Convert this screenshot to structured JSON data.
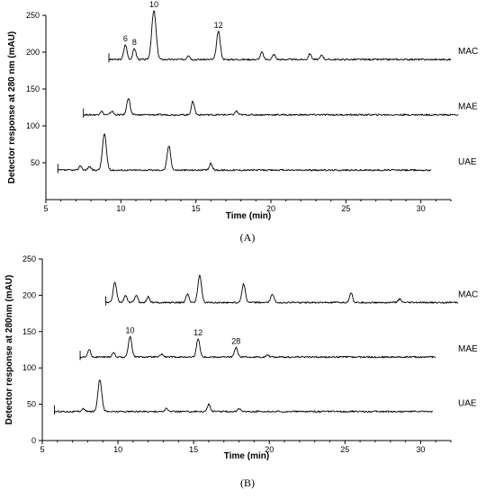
{
  "panels": [
    {
      "label": "(A)",
      "label_letter": "A"
    },
    {
      "label": "(B)",
      "label_letter": "B"
    }
  ],
  "chart_data": [
    {
      "type": "line",
      "panel": "A",
      "xlabel": "Time (min)",
      "ylabel": "Detector response at 280 nm (mAU)",
      "xlim": [
        5,
        32
      ],
      "ylim": [
        0,
        250
      ],
      "xticks": [
        5,
        10,
        15,
        20,
        25,
        30
      ],
      "yticks": [
        50,
        100,
        150,
        200,
        250
      ],
      "series": [
        {
          "name": "MAC",
          "baseline": 190,
          "x_start": 9.2,
          "x_end": 32,
          "peaks": [
            {
              "x": 10.3,
              "y": 210,
              "label": "6"
            },
            {
              "x": 10.9,
              "y": 205,
              "label": "8"
            },
            {
              "x": 12.2,
              "y": 256,
              "label": "10"
            },
            {
              "x": 16.5,
              "y": 228,
              "label": "12"
            },
            {
              "x": 14.5,
              "y": 196,
              "label": ""
            },
            {
              "x": 19.4,
              "y": 200,
              "label": ""
            },
            {
              "x": 20.2,
              "y": 197,
              "label": ""
            },
            {
              "x": 22.6,
              "y": 198,
              "label": ""
            },
            {
              "x": 23.4,
              "y": 196,
              "label": ""
            }
          ]
        },
        {
          "name": "MAE",
          "baseline": 115,
          "x_start": 7.5,
          "x_end": 32.5,
          "peaks": [
            {
              "x": 8.7,
              "y": 120,
              "label": ""
            },
            {
              "x": 9.4,
              "y": 120,
              "label": ""
            },
            {
              "x": 10.5,
              "y": 138,
              "label": ""
            },
            {
              "x": 14.8,
              "y": 133,
              "label": ""
            },
            {
              "x": 17.7,
              "y": 120,
              "label": ""
            }
          ]
        },
        {
          "name": "UAE",
          "baseline": 40,
          "x_start": 5.8,
          "x_end": 30.7,
          "peaks": [
            {
              "x": 7.3,
              "y": 46,
              "label": ""
            },
            {
              "x": 7.9,
              "y": 45,
              "label": ""
            },
            {
              "x": 8.9,
              "y": 89,
              "label": ""
            },
            {
              "x": 13.2,
              "y": 73,
              "label": ""
            },
            {
              "x": 16.0,
              "y": 49,
              "label": ""
            }
          ]
        }
      ]
    },
    {
      "type": "line",
      "panel": "B",
      "xlabel": "Time (min)",
      "ylabel": "Detector response at 280nm (mAU)",
      "xlim": [
        5,
        32
      ],
      "ylim": [
        0,
        250
      ],
      "xticks": [
        5,
        10,
        15,
        20,
        25,
        30
      ],
      "yticks": [
        0,
        50,
        100,
        150,
        200,
        250
      ],
      "series": [
        {
          "name": "MAC",
          "baseline": 190,
          "x_start": 9.2,
          "x_end": 32.5,
          "peaks": [
            {
              "x": 9.8,
              "y": 218,
              "label": ""
            },
            {
              "x": 10.5,
              "y": 200,
              "label": ""
            },
            {
              "x": 11.2,
              "y": 200,
              "label": ""
            },
            {
              "x": 12.0,
              "y": 198,
              "label": ""
            },
            {
              "x": 14.6,
              "y": 202,
              "label": ""
            },
            {
              "x": 15.4,
              "y": 227,
              "label": ""
            },
            {
              "x": 18.3,
              "y": 216,
              "label": ""
            },
            {
              "x": 20.2,
              "y": 202,
              "label": ""
            },
            {
              "x": 25.4,
              "y": 204,
              "label": ""
            },
            {
              "x": 28.6,
              "y": 195,
              "label": ""
            }
          ]
        },
        {
          "name": "MAE",
          "baseline": 115,
          "x_start": 7.5,
          "x_end": 31,
          "peaks": [
            {
              "x": 8.1,
              "y": 125,
              "label": ""
            },
            {
              "x": 9.7,
              "y": 121,
              "label": ""
            },
            {
              "x": 10.8,
              "y": 143,
              "label": "10"
            },
            {
              "x": 12.9,
              "y": 119,
              "label": ""
            },
            {
              "x": 15.3,
              "y": 140,
              "label": "12"
            },
            {
              "x": 17.8,
              "y": 128,
              "label": "28"
            },
            {
              "x": 19.9,
              "y": 118,
              "label": ""
            }
          ]
        },
        {
          "name": "UAE",
          "baseline": 40,
          "x_start": 5.8,
          "x_end": 30.8,
          "peaks": [
            {
              "x": 7.7,
              "y": 44,
              "label": ""
            },
            {
              "x": 8.8,
              "y": 84,
              "label": ""
            },
            {
              "x": 13.2,
              "y": 44,
              "label": ""
            },
            {
              "x": 16.0,
              "y": 50,
              "label": ""
            },
            {
              "x": 18.0,
              "y": 44,
              "label": ""
            }
          ]
        }
      ]
    }
  ]
}
